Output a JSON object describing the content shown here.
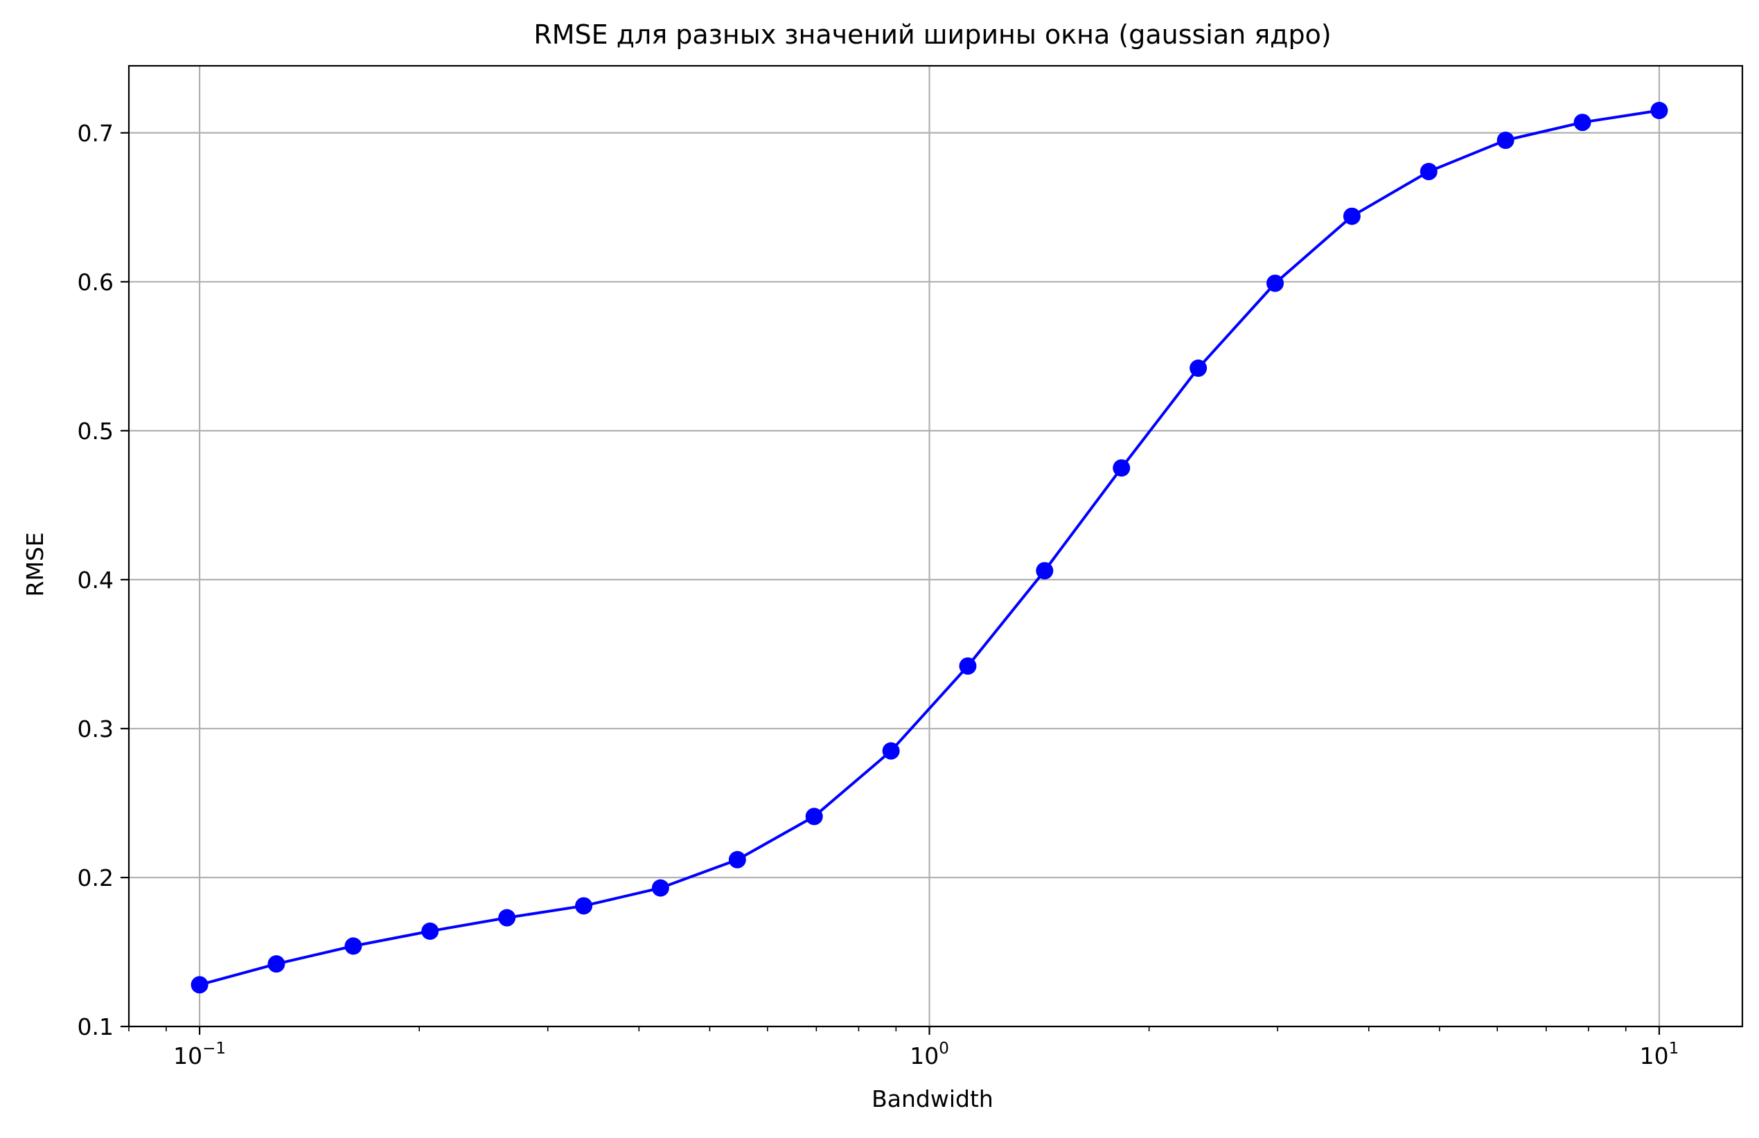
{
  "chart_data": {
    "type": "line",
    "title": "RMSE для разных значений ширины окна (gaussian ядро)",
    "xlabel": "Bandwidth",
    "ylabel": "RMSE",
    "x_scale": "log",
    "xlim": [
      0.08,
      13
    ],
    "ylim": [
      0.1,
      0.745
    ],
    "grid": true,
    "line_color": "#0000ff",
    "grid_color": "#b0b0b0",
    "x_ticks": [
      {
        "value": 0.1,
        "base": "10",
        "exp": "−1"
      },
      {
        "value": 1,
        "base": "10",
        "exp": "0"
      },
      {
        "value": 10,
        "base": "10",
        "exp": "1"
      }
    ],
    "y_ticks": [
      {
        "value": 0.1,
        "label": "0.1"
      },
      {
        "value": 0.2,
        "label": "0.2"
      },
      {
        "value": 0.3,
        "label": "0.3"
      },
      {
        "value": 0.4,
        "label": "0.4"
      },
      {
        "value": 0.5,
        "label": "0.5"
      },
      {
        "value": 0.6,
        "label": "0.6"
      },
      {
        "value": 0.7,
        "label": "0.7"
      }
    ],
    "series": [
      {
        "x": [
          0.1,
          0.1274,
          0.1624,
          0.2069,
          0.2637,
          0.336,
          0.4281,
          0.5456,
          0.6952,
          0.8859,
          1.1288,
          1.4384,
          1.833,
          2.3357,
          2.9764,
          3.7927,
          4.8329,
          6.1585,
          7.8476,
          10.0
        ],
        "y": [
          0.128,
          0.142,
          0.154,
          0.164,
          0.173,
          0.181,
          0.193,
          0.212,
          0.241,
          0.285,
          0.342,
          0.406,
          0.475,
          0.542,
          0.599,
          0.644,
          0.674,
          0.695,
          0.707,
          0.715
        ]
      }
    ]
  }
}
